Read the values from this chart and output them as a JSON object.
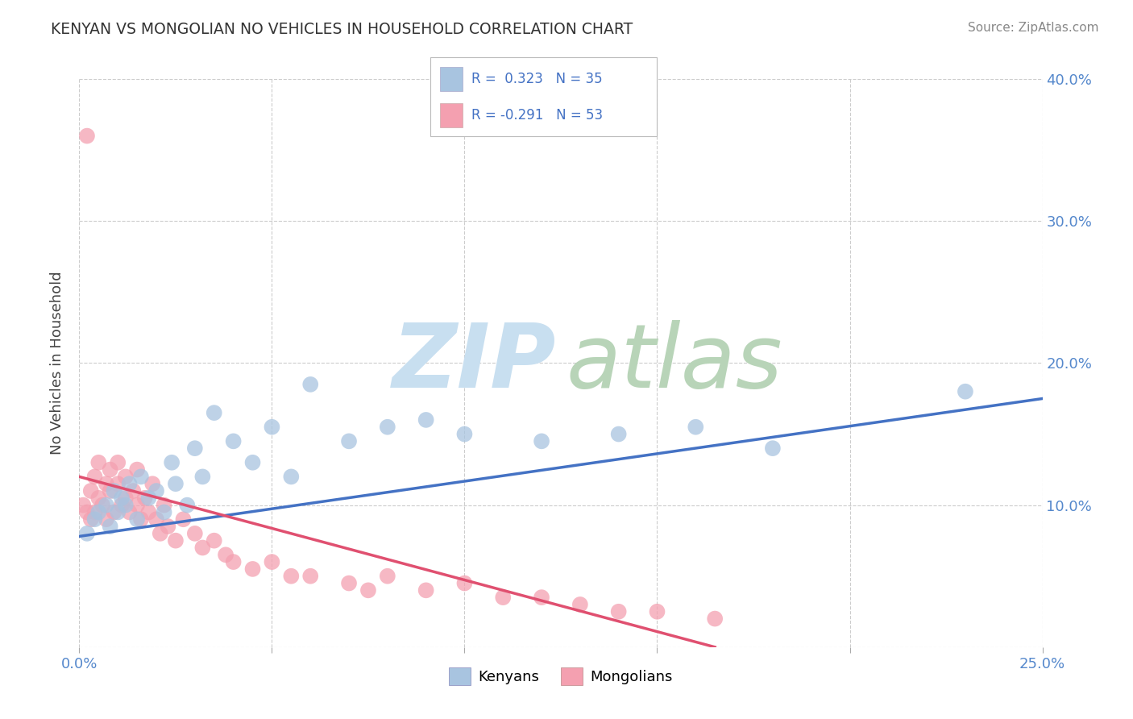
{
  "title": "KENYAN VS MONGOLIAN NO VEHICLES IN HOUSEHOLD CORRELATION CHART",
  "source": "Source: ZipAtlas.com",
  "ylabel": "No Vehicles in Household",
  "xlim": [
    0.0,
    0.25
  ],
  "ylim": [
    0.0,
    0.4
  ],
  "xticks": [
    0.0,
    0.05,
    0.1,
    0.15,
    0.2,
    0.25
  ],
  "yticks": [
    0.0,
    0.1,
    0.2,
    0.3,
    0.4
  ],
  "xticklabels": [
    "0.0%",
    "",
    "",
    "",
    "",
    "25.0%"
  ],
  "yticklabels": [
    "",
    "10.0%",
    "20.0%",
    "30.0%",
    "40.0%"
  ],
  "kenyan_R": 0.323,
  "kenyan_N": 35,
  "mongolian_R": -0.291,
  "mongolian_N": 53,
  "kenyan_color": "#a8c4e0",
  "mongolian_color": "#f4a0b0",
  "kenyan_line_color": "#4472c4",
  "mongolian_line_color": "#e05070",
  "kenyan_x": [
    0.002,
    0.004,
    0.005,
    0.007,
    0.008,
    0.009,
    0.01,
    0.011,
    0.012,
    0.013,
    0.015,
    0.016,
    0.018,
    0.02,
    0.022,
    0.024,
    0.025,
    0.028,
    0.03,
    0.032,
    0.035,
    0.04,
    0.045,
    0.05,
    0.055,
    0.06,
    0.07,
    0.08,
    0.09,
    0.1,
    0.12,
    0.14,
    0.16,
    0.18,
    0.23
  ],
  "kenyan_y": [
    0.08,
    0.09,
    0.095,
    0.1,
    0.085,
    0.11,
    0.095,
    0.105,
    0.1,
    0.115,
    0.09,
    0.12,
    0.105,
    0.11,
    0.095,
    0.13,
    0.115,
    0.1,
    0.14,
    0.12,
    0.165,
    0.145,
    0.13,
    0.155,
    0.12,
    0.185,
    0.145,
    0.155,
    0.16,
    0.15,
    0.145,
    0.15,
    0.155,
    0.14,
    0.18
  ],
  "mongolian_x": [
    0.001,
    0.002,
    0.003,
    0.003,
    0.004,
    0.004,
    0.005,
    0.005,
    0.006,
    0.007,
    0.007,
    0.008,
    0.008,
    0.009,
    0.01,
    0.01,
    0.011,
    0.012,
    0.012,
    0.013,
    0.014,
    0.015,
    0.015,
    0.016,
    0.017,
    0.018,
    0.019,
    0.02,
    0.021,
    0.022,
    0.023,
    0.025,
    0.027,
    0.03,
    0.032,
    0.035,
    0.038,
    0.04,
    0.045,
    0.05,
    0.055,
    0.06,
    0.07,
    0.075,
    0.08,
    0.09,
    0.1,
    0.11,
    0.12,
    0.13,
    0.14,
    0.15,
    0.165
  ],
  "mongolian_y": [
    0.1,
    0.095,
    0.11,
    0.09,
    0.095,
    0.12,
    0.105,
    0.13,
    0.1,
    0.115,
    0.09,
    0.11,
    0.125,
    0.095,
    0.13,
    0.115,
    0.1,
    0.12,
    0.105,
    0.095,
    0.11,
    0.1,
    0.125,
    0.09,
    0.105,
    0.095,
    0.115,
    0.09,
    0.08,
    0.1,
    0.085,
    0.075,
    0.09,
    0.08,
    0.07,
    0.075,
    0.065,
    0.06,
    0.055,
    0.06,
    0.05,
    0.05,
    0.045,
    0.04,
    0.05,
    0.04,
    0.045,
    0.035,
    0.035,
    0.03,
    0.025,
    0.025,
    0.02
  ],
  "mongolian_outlier_x": [
    0.002
  ],
  "mongolian_outlier_y": [
    0.36
  ],
  "kenyan_line_x0": 0.0,
  "kenyan_line_y0": 0.078,
  "kenyan_line_x1": 0.25,
  "kenyan_line_y1": 0.175,
  "mongolian_line_x0": 0.0,
  "mongolian_line_y0": 0.12,
  "mongolian_line_x1": 0.165,
  "mongolian_line_y1": 0.0
}
